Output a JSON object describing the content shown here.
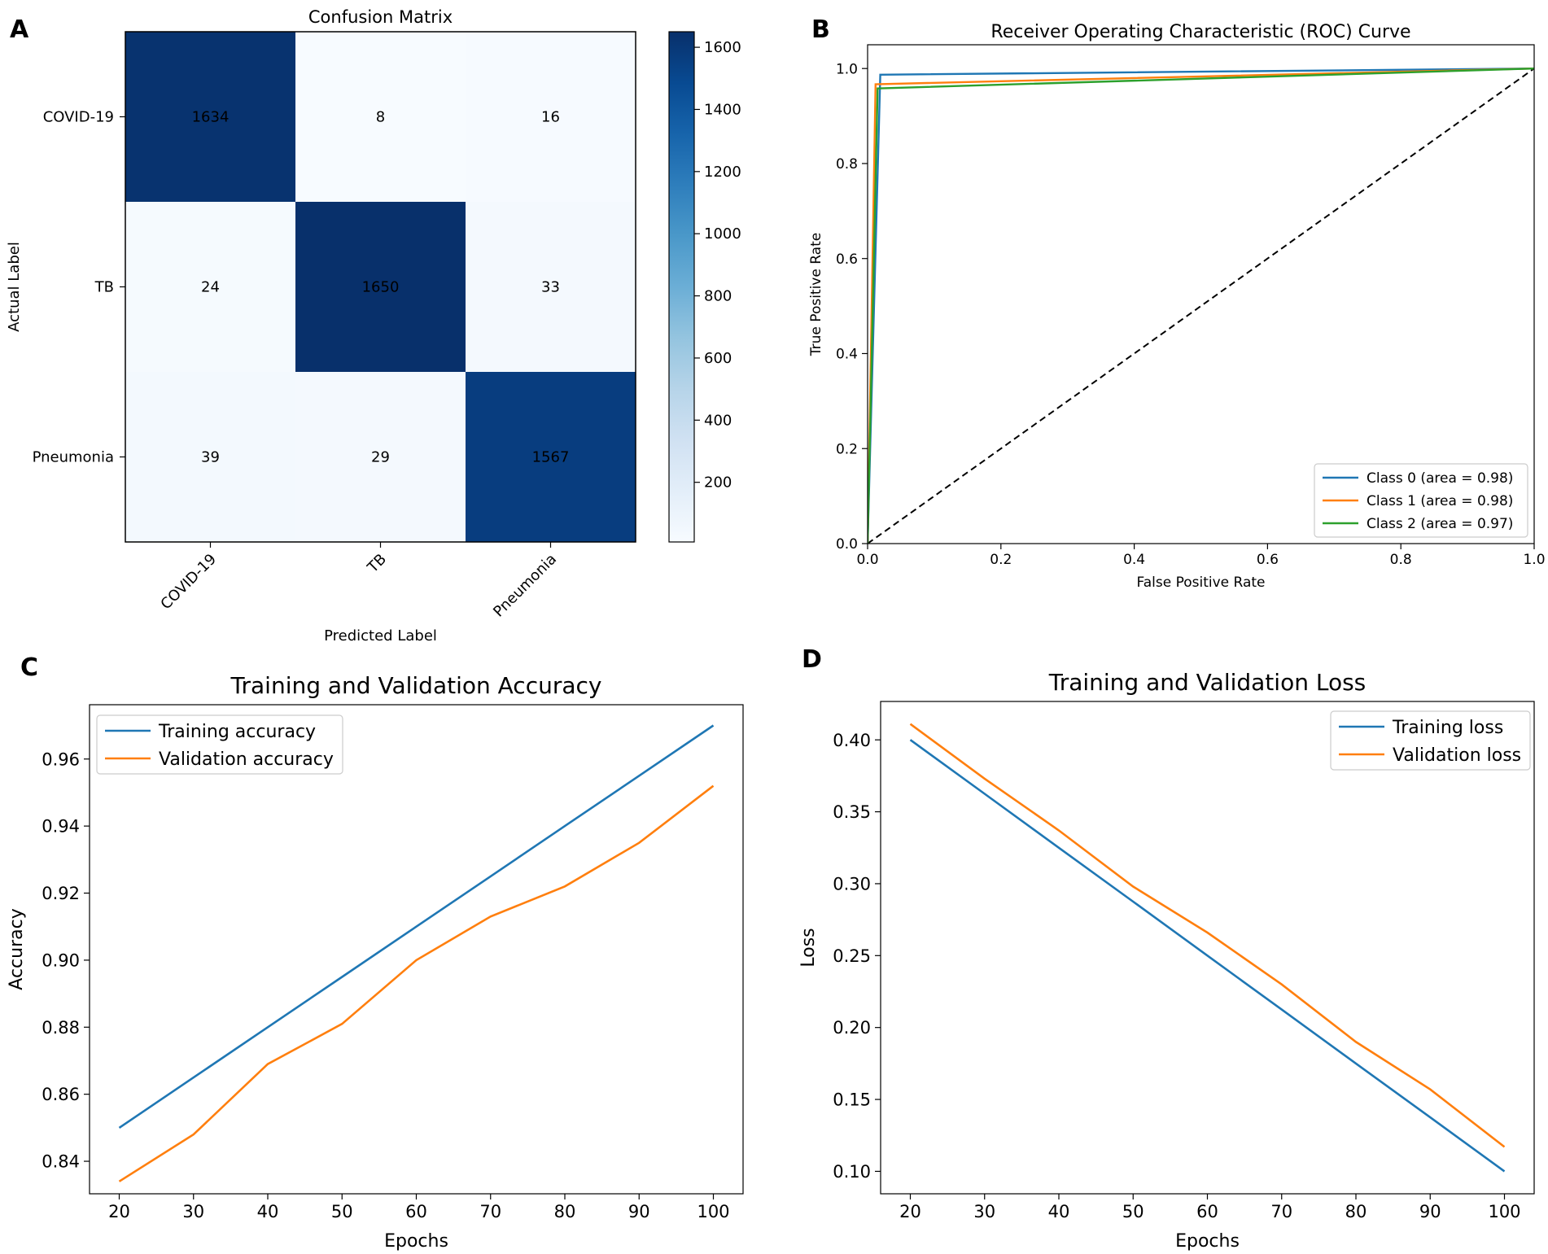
{
  "chart_data": [
    {
      "panel": "A",
      "type": "heatmap",
      "title": "Confusion Matrix",
      "xlabel": "Predicted Label",
      "ylabel": "Actual Label",
      "row_labels": [
        "COVID-19",
        "TB",
        "Pneumonia"
      ],
      "col_labels": [
        "COVID-19",
        "TB",
        "Pneumonia"
      ],
      "matrix": [
        [
          1634,
          8,
          16
        ],
        [
          24,
          1650,
          33
        ],
        [
          39,
          29,
          1567
        ]
      ],
      "colorbar": {
        "range": [
          8,
          1650
        ],
        "ticks": [
          200,
          400,
          600,
          800,
          1000,
          1200,
          1400,
          1600
        ],
        "tick_labels": [
          "200",
          "400",
          "600",
          "800",
          "1000",
          "1200",
          "1400",
          "1600"
        ]
      }
    },
    {
      "panel": "B",
      "type": "line",
      "title": "Receiver Operating Characteristic (ROC) Curve",
      "xlabel": "False Positive Rate",
      "ylabel": "True Positive Rate",
      "xlim": [
        0.0,
        1.0
      ],
      "ylim": [
        0.0,
        1.05
      ],
      "xticks": [
        0.0,
        0.2,
        0.4,
        0.6,
        0.8,
        1.0
      ],
      "xtick_labels": [
        "0.0",
        "0.2",
        "0.4",
        "0.6",
        "0.8",
        "1.0"
      ],
      "yticks": [
        0.0,
        0.2,
        0.4,
        0.6,
        0.8,
        1.0
      ],
      "ytick_labels": [
        "0.0",
        "0.2",
        "0.4",
        "0.6",
        "0.8",
        "1.0"
      ],
      "legend_position": "lower-right",
      "series": [
        {
          "name": "Class 0 (area = 0.98)",
          "color": "#1f77b4",
          "x": [
            0.0,
            0.019,
            1.0
          ],
          "y": [
            0.0,
            0.987,
            1.0
          ]
        },
        {
          "name": "Class 1 (area = 0.98)",
          "color": "#ff7f0e",
          "x": [
            0.0,
            0.012,
            1.0
          ],
          "y": [
            0.0,
            0.967,
            1.0
          ]
        },
        {
          "name": "Class 2 (area = 0.97)",
          "color": "#2ca02c",
          "x": [
            0.0,
            0.015,
            1.0
          ],
          "y": [
            0.0,
            0.958,
            1.0
          ]
        }
      ],
      "reference_line": {
        "x": [
          0,
          1
        ],
        "y": [
          0,
          1
        ],
        "style": "dashed",
        "color": "#000000"
      }
    },
    {
      "panel": "C",
      "type": "line",
      "title": "Training and Validation Accuracy",
      "xlabel": "Epochs",
      "ylabel": "Accuracy",
      "xlim": [
        16,
        104
      ],
      "ylim": [
        0.8303,
        0.9762
      ],
      "xticks": [
        20,
        30,
        40,
        50,
        60,
        70,
        80,
        90,
        100
      ],
      "xtick_labels": [
        "20",
        "30",
        "40",
        "50",
        "60",
        "70",
        "80",
        "90",
        "100"
      ],
      "yticks": [
        0.84,
        0.86,
        0.88,
        0.9,
        0.92,
        0.94,
        0.96
      ],
      "ytick_labels": [
        "0.84",
        "0.86",
        "0.88",
        "0.90",
        "0.92",
        "0.94",
        "0.96"
      ],
      "legend_position": "top-left",
      "x": [
        20,
        30,
        40,
        50,
        60,
        70,
        80,
        90,
        100
      ],
      "series": [
        {
          "name": "Training accuracy",
          "color": "#1f77b4",
          "values": [
            0.85,
            0.865,
            0.88,
            0.895,
            0.91,
            0.925,
            0.94,
            0.955,
            0.97
          ]
        },
        {
          "name": "Validation accuracy",
          "color": "#ff7f0e",
          "values": [
            0.834,
            0.848,
            0.869,
            0.881,
            0.9,
            0.913,
            0.922,
            0.935,
            0.952
          ]
        }
      ]
    },
    {
      "panel": "D",
      "type": "line",
      "title": "Training and Validation Loss",
      "xlabel": "Epochs",
      "ylabel": "Loss",
      "xlim": [
        16,
        104
      ],
      "ylim": [
        0.0844,
        0.4267
      ],
      "xticks": [
        20,
        30,
        40,
        50,
        60,
        70,
        80,
        90,
        100
      ],
      "xtick_labels": [
        "20",
        "30",
        "40",
        "50",
        "60",
        "70",
        "80",
        "90",
        "100"
      ],
      "yticks": [
        0.1,
        0.15,
        0.2,
        0.25,
        0.3,
        0.35,
        0.4
      ],
      "ytick_labels": [
        "0.10",
        "0.15",
        "0.20",
        "0.25",
        "0.30",
        "0.35",
        "0.40"
      ],
      "legend_position": "top-right",
      "x": [
        20,
        30,
        40,
        50,
        60,
        70,
        80,
        90,
        100
      ],
      "series": [
        {
          "name": "Training loss",
          "color": "#1f77b4",
          "values": [
            0.4,
            0.3625,
            0.325,
            0.2875,
            0.25,
            0.2125,
            0.175,
            0.1375,
            0.1
          ]
        },
        {
          "name": "Validation loss",
          "color": "#ff7f0e",
          "values": [
            0.411,
            0.373,
            0.337,
            0.298,
            0.266,
            0.23,
            0.19,
            0.157,
            0.117
          ]
        }
      ]
    }
  ],
  "panel_letters": [
    "A",
    "B",
    "C",
    "D"
  ]
}
